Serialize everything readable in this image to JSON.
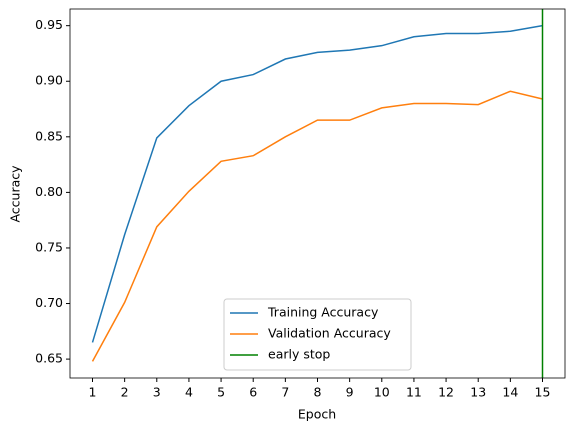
{
  "chart_data": {
    "type": "line",
    "xlabel": "Epoch",
    "ylabel": "Accuracy",
    "x": [
      1,
      2,
      3,
      4,
      5,
      6,
      7,
      8,
      9,
      10,
      11,
      12,
      13,
      14,
      15
    ],
    "series": [
      {
        "name": "Training Accuracy",
        "color": "#1f77b4",
        "values": [
          0.665,
          0.762,
          0.849,
          0.878,
          0.9,
          0.906,
          0.92,
          0.926,
          0.928,
          0.932,
          0.94,
          0.943,
          0.943,
          0.945,
          0.95
        ]
      },
      {
        "name": "Validation Accuracy",
        "color": "#ff7f0e",
        "values": [
          0.648,
          0.701,
          0.769,
          0.801,
          0.828,
          0.833,
          0.85,
          0.865,
          0.865,
          0.876,
          0.88,
          0.88,
          0.879,
          0.891,
          0.884
        ]
      }
    ],
    "vlines": [
      {
        "name": "early stop",
        "color": "green",
        "x": 15
      }
    ],
    "xlim": [
      0.3,
      15.7
    ],
    "xticks": [
      1,
      2,
      3,
      4,
      5,
      6,
      7,
      8,
      9,
      10,
      11,
      12,
      13,
      14,
      15
    ],
    "ylim": [
      0.633,
      0.965
    ],
    "yticks": [
      {
        "value": 0.65,
        "label": "0.65"
      },
      {
        "value": 0.7,
        "label": "0.70"
      },
      {
        "value": 0.75,
        "label": "0.75"
      },
      {
        "value": 0.8,
        "label": "0.80"
      },
      {
        "value": 0.85,
        "label": "0.85"
      },
      {
        "value": 0.9,
        "label": "0.90"
      },
      {
        "value": 0.95,
        "label": "0.95"
      }
    ],
    "legend": "lower center"
  }
}
